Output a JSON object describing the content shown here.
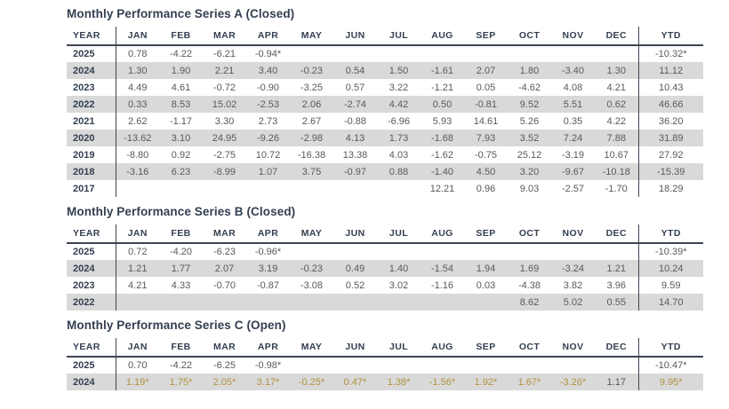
{
  "colors": {
    "title_text": "#333f50",
    "value_text": "#595959",
    "row_stripe": "#d9d9d9",
    "gold_highlight": "#b2923e",
    "rule_line": "#3c4654",
    "background": "#ffffff"
  },
  "columns": [
    "YEAR",
    "JAN",
    "FEB",
    "MAR",
    "APR",
    "MAY",
    "JUN",
    "JUL",
    "AUG",
    "SEP",
    "OCT",
    "NOV",
    "DEC",
    "YTD"
  ],
  "tables": [
    {
      "title": "Monthly Performance Series A (Closed)",
      "rows": [
        {
          "year": "2025",
          "months": [
            "0.78",
            "-4.22",
            "-6.21",
            "-0.94*",
            "",
            "",
            "",
            "",
            "",
            "",
            "",
            ""
          ],
          "ytd": "-10.32*",
          "shaded": false
        },
        {
          "year": "2024",
          "months": [
            "1.30",
            "1.90",
            "2.21",
            "3.40",
            "-0.23",
            "0.54",
            "1.50",
            "-1.61",
            "2.07",
            "1.80",
            "-3.40",
            "1.30"
          ],
          "ytd": "11.12",
          "shaded": true
        },
        {
          "year": "2023",
          "months": [
            "4.49",
            "4.61",
            "-0.72",
            "-0.90",
            "-3.25",
            "0.57",
            "3.22",
            "-1.21",
            "0.05",
            "-4.62",
            "4.08",
            "4.21"
          ],
          "ytd": "10.43",
          "shaded": false
        },
        {
          "year": "2022",
          "months": [
            "0.33",
            "8.53",
            "15.02",
            "-2.53",
            "2.06",
            "-2.74",
            "4.42",
            "0.50",
            "-0.81",
            "9.52",
            "5.51",
            "0.62"
          ],
          "ytd": "46.66",
          "shaded": true
        },
        {
          "year": "2021",
          "months": [
            "2.62",
            "-1.17",
            "3.30",
            "2.73",
            "2.67",
            "-0.88",
            "-6.96",
            "5.93",
            "14.61",
            "5.26",
            "0.35",
            "4.22"
          ],
          "ytd": "36.20",
          "shaded": false
        },
        {
          "year": "2020",
          "months": [
            "-13.62",
            "3.10",
            "24.95",
            "-9.26",
            "-2.98",
            "4.13",
            "1.73",
            "-1.68",
            "7.93",
            "3.52",
            "7.24",
            "7.88"
          ],
          "ytd": "31.89",
          "shaded": true
        },
        {
          "year": "2019",
          "months": [
            "-8.80",
            "0.92",
            "-2.75",
            "10.72",
            "-16.38",
            "13.38",
            "4.03",
            "-1.62",
            "-0.75",
            "25.12",
            "-3.19",
            "10.67"
          ],
          "ytd": "27.92",
          "shaded": false
        },
        {
          "year": "2018",
          "months": [
            "-3.16",
            "6.23",
            "-8.99",
            "1.07",
            "3.75",
            "-0.97",
            "0.88",
            "-1.40",
            "4.50",
            "3.20",
            "-9.67",
            "-10.18"
          ],
          "ytd": "-15.39",
          "shaded": true
        },
        {
          "year": "2017",
          "months": [
            "",
            "",
            "",
            "",
            "",
            "",
            "",
            "12.21",
            "0.96",
            "9.03",
            "-2.57",
            "-1.70"
          ],
          "ytd": "18.29",
          "shaded": false
        }
      ]
    },
    {
      "title": "Monthly Performance Series B (Closed)",
      "rows": [
        {
          "year": "2025",
          "months": [
            "0.72",
            "-4.20",
            "-6.23",
            "-0.96*",
            "",
            "",
            "",
            "",
            "",
            "",
            "",
            ""
          ],
          "ytd": "-10.39*",
          "shaded": false
        },
        {
          "year": "2024",
          "months": [
            "1.21",
            "1.77",
            "2.07",
            "3.19",
            "-0.23",
            "0.49",
            "1.40",
            "-1.54",
            "1.94",
            "1.69",
            "-3.24",
            "1.21"
          ],
          "ytd": "10.24",
          "shaded": true
        },
        {
          "year": "2023",
          "months": [
            "4.21",
            "4.33",
            "-0.70",
            "-0.87",
            "-3.08",
            "0.52",
            "3.02",
            "-1.16",
            "0.03",
            "-4.38",
            "3.82",
            "3.96"
          ],
          "ytd": "9.59",
          "shaded": false
        },
        {
          "year": "2022",
          "months": [
            "",
            "",
            "",
            "",
            "",
            "",
            "",
            "",
            "",
            "8.62",
            "5.02",
            "0.55"
          ],
          "ytd": "14.70",
          "shaded": true
        }
      ]
    },
    {
      "title": "Monthly Performance Series C (Open)",
      "rows": [
        {
          "year": "2025",
          "months": [
            "0.70",
            "-4.22",
            "-6.25",
            "-0.98*",
            "",
            "",
            "",
            "",
            "",
            "",
            "",
            ""
          ],
          "ytd": "-10.47*",
          "shaded": false
        },
        {
          "year": "2024",
          "months": [
            "1.19*",
            "1.75*",
            "2.05*",
            "3.17*",
            "-0.25*",
            "0.47*",
            "1.38*",
            "-1.56*",
            "1.92*",
            "1.67*",
            "-3.26*",
            "1.17"
          ],
          "ytd": "9.95*",
          "shaded": true,
          "gold_months": [
            0,
            1,
            2,
            3,
            4,
            5,
            6,
            7,
            8,
            9,
            10
          ],
          "gold_ytd": true
        }
      ]
    }
  ]
}
